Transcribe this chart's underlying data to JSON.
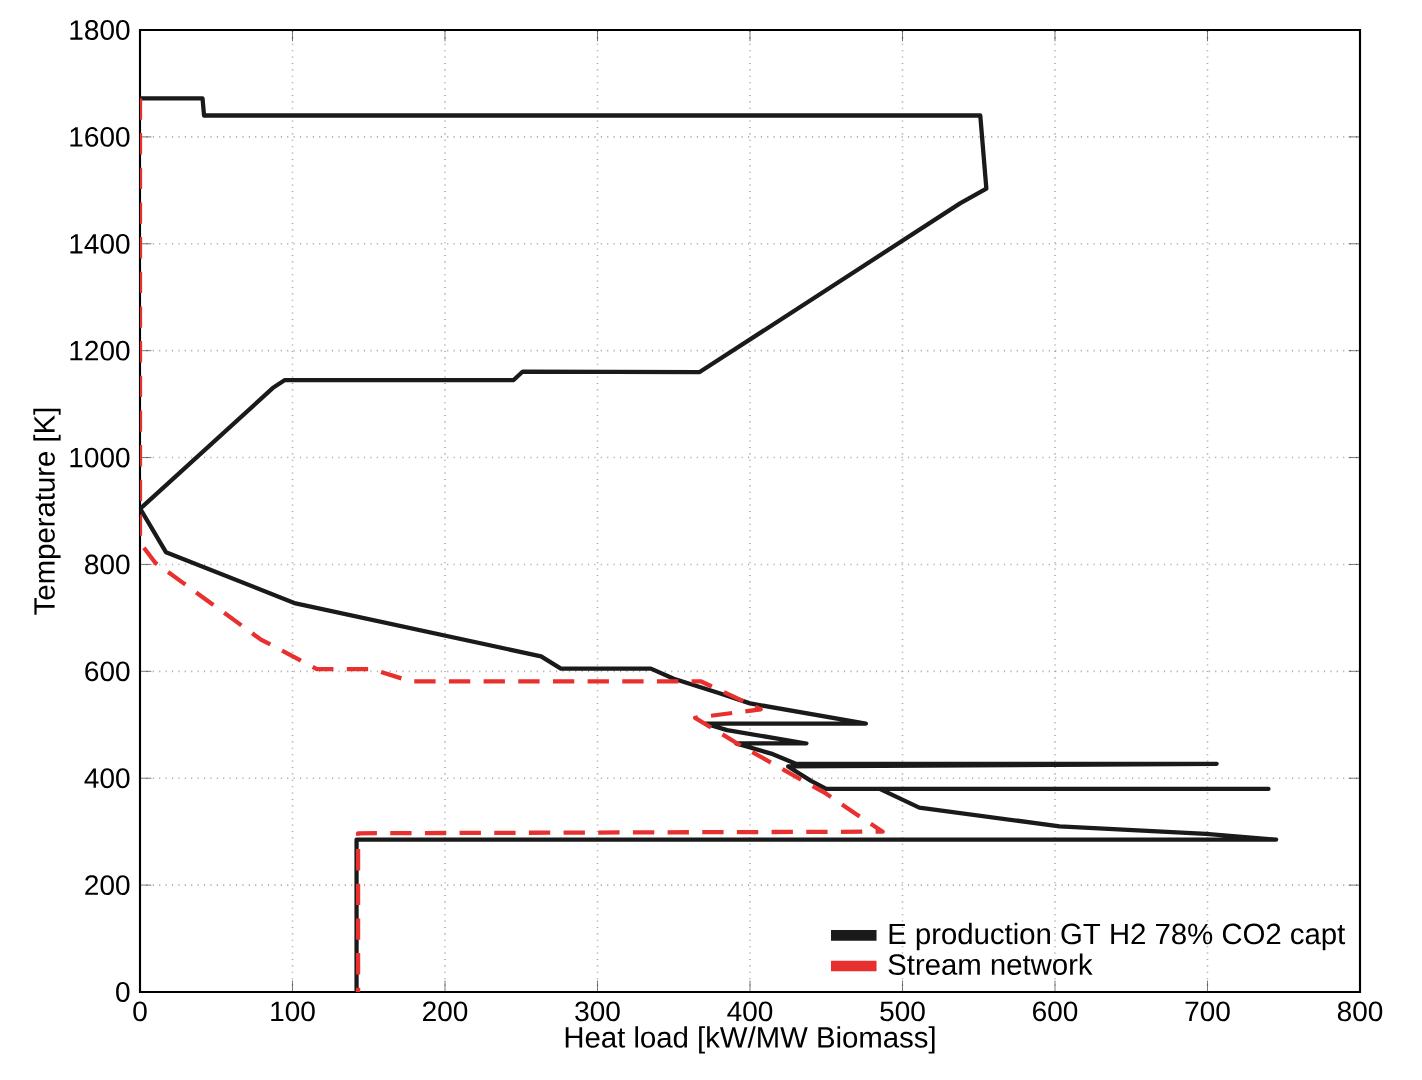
{
  "chart_data": {
    "type": "line",
    "xlabel": "Heat load [kW/MW Biomass]",
    "ylabel": "Temperature [K]",
    "xlim": [
      0,
      800
    ],
    "ylim": [
      0,
      1800
    ],
    "xticks": [
      0,
      100,
      200,
      300,
      400,
      500,
      600,
      700,
      800
    ],
    "yticks": [
      0,
      200,
      400,
      600,
      800,
      1000,
      1200,
      1400,
      1600,
      1800
    ],
    "grid": true,
    "legend": "bottom right",
    "series": [
      {
        "name": "E production GT H2 78% CO2 capt",
        "color": "#1a1a1a",
        "line_style": "solid",
        "x": [
          0,
          41,
          42,
          551,
          555,
          538,
          367,
          251,
          245,
          95,
          87,
          2,
          0,
          17,
          102,
          263,
          276,
          335,
          350,
          380,
          400,
          476,
          371,
          385,
          437,
          391,
          415,
          430,
          706,
          425,
          440,
          450,
          740,
          485,
          511,
          603,
          699,
          745,
          142,
          142
        ],
        "values": [
          1672,
          1672,
          1640,
          1640,
          1503,
          1476,
          1160,
          1161,
          1145,
          1145,
          1130,
          909,
          905,
          823,
          727,
          628,
          605,
          605,
          586,
          559,
          540,
          502,
          502,
          490,
          465,
          465,
          445,
          427,
          427,
          422,
          395,
          380,
          380,
          380,
          345,
          310,
          296,
          285,
          285,
          0
        ]
      },
      {
        "name": "Stream network",
        "color": "#e8302f",
        "line_style": "dashed",
        "x": [
          0,
          0,
          10,
          28,
          79,
          116,
          152,
          178,
          368,
          407,
          364,
          394,
          450,
          469,
          487,
          143,
          143
        ],
        "values": [
          1672,
          841,
          803,
          766,
          660,
          604,
          604,
          581,
          581,
          529,
          513,
          461,
          371,
          334,
          300,
          297,
          0
        ]
      }
    ]
  }
}
